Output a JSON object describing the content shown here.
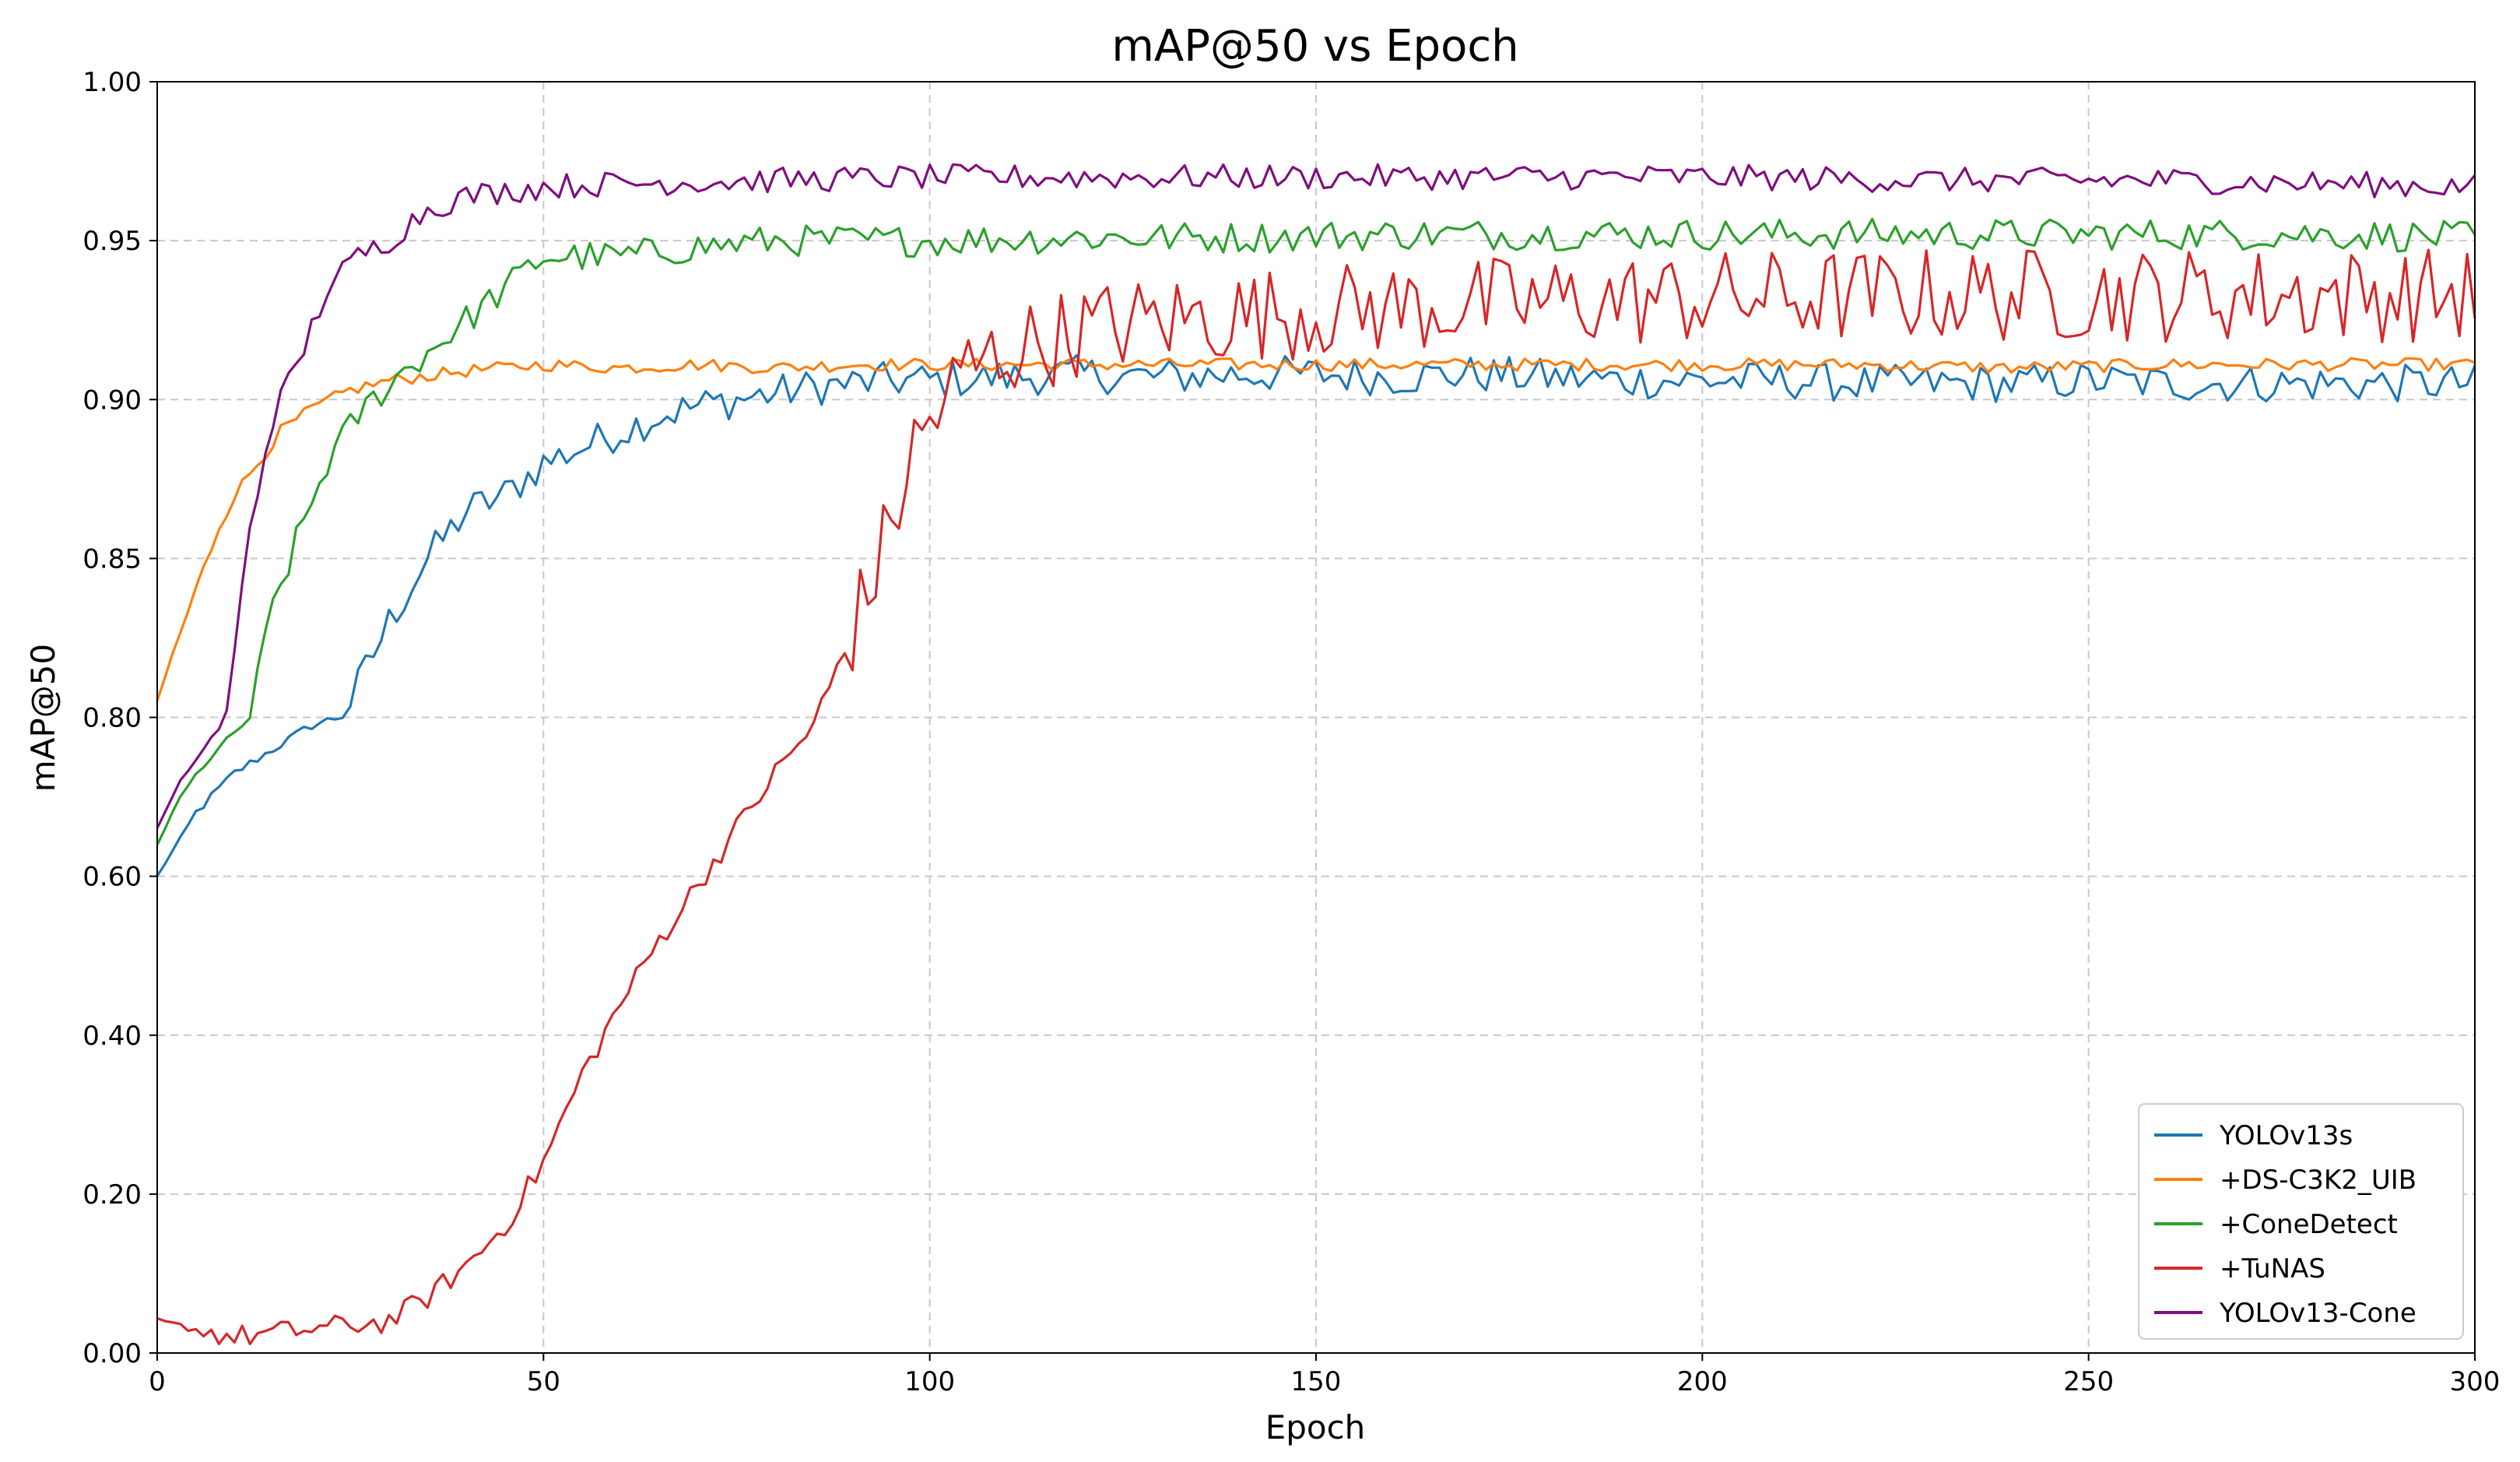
{
  "chart_data": {
    "type": "line",
    "title": "mAP@50 vs Epoch",
    "xlabel": "Epoch",
    "ylabel": "mAP@50",
    "xlim": [
      0,
      300
    ],
    "x_ticks": [
      "0",
      "50",
      "100",
      "150",
      "200",
      "250",
      "300"
    ],
    "y_ticks": [
      "0.00",
      "0.20",
      "0.40",
      "0.60",
      "0.80",
      "0.85",
      "0.90",
      "0.95",
      "1.00"
    ],
    "y_scale_note": "broken axis: 0.00-0.80 compressed, 0.80-1.00 expanded",
    "grid": true,
    "legend_position": "lower-right",
    "series": [
      {
        "name": "YOLOv13s",
        "color": "#1f77b4",
        "points": [
          [
            0,
            0.6
          ],
          [
            5,
            0.68
          ],
          [
            10,
            0.73
          ],
          [
            15,
            0.76
          ],
          [
            20,
            0.79
          ],
          [
            25,
            0.805
          ],
          [
            30,
            0.83
          ],
          [
            35,
            0.85
          ],
          [
            40,
            0.865
          ],
          [
            45,
            0.87
          ],
          [
            50,
            0.88
          ],
          [
            55,
            0.885
          ],
          [
            60,
            0.89
          ],
          [
            65,
            0.895
          ],
          [
            70,
            0.898
          ],
          [
            75,
            0.9
          ],
          [
            80,
            0.902
          ],
          [
            85,
            0.904
          ],
          [
            90,
            0.905
          ],
          [
            95,
            0.906
          ],
          [
            100,
            0.906
          ],
          [
            110,
            0.907
          ],
          [
            120,
            0.908
          ],
          [
            130,
            0.907
          ],
          [
            140,
            0.908
          ],
          [
            150,
            0.908
          ],
          [
            160,
            0.907
          ],
          [
            170,
            0.908
          ],
          [
            180,
            0.907
          ],
          [
            190,
            0.906
          ],
          [
            200,
            0.906
          ],
          [
            210,
            0.906
          ],
          [
            220,
            0.905
          ],
          [
            230,
            0.905
          ],
          [
            240,
            0.905
          ],
          [
            250,
            0.906
          ],
          [
            260,
            0.905
          ],
          [
            270,
            0.905
          ],
          [
            280,
            0.905
          ],
          [
            290,
            0.905
          ],
          [
            300,
            0.905
          ]
        ],
        "noise": 0.006
      },
      {
        "name": "+DS-C3K2_UIB",
        "color": "#ff7f0e",
        "points": [
          [
            0,
            0.805
          ],
          [
            2,
            0.82
          ],
          [
            5,
            0.84
          ],
          [
            8,
            0.86
          ],
          [
            10,
            0.87
          ],
          [
            13,
            0.88
          ],
          [
            16,
            0.89
          ],
          [
            20,
            0.897
          ],
          [
            25,
            0.903
          ],
          [
            30,
            0.906
          ],
          [
            40,
            0.909
          ],
          [
            50,
            0.911
          ],
          [
            60,
            0.91
          ],
          [
            70,
            0.911
          ],
          [
            80,
            0.91
          ],
          [
            90,
            0.911
          ],
          [
            100,
            0.911
          ],
          [
            120,
            0.911
          ],
          [
            140,
            0.911
          ],
          [
            160,
            0.911
          ],
          [
            180,
            0.911
          ],
          [
            200,
            0.911
          ],
          [
            220,
            0.911
          ],
          [
            240,
            0.91
          ],
          [
            260,
            0.911
          ],
          [
            280,
            0.911
          ],
          [
            300,
            0.911
          ]
        ],
        "noise": 0.002
      },
      {
        "name": "+ConeDetect",
        "color": "#2ca02c",
        "points": [
          [
            0,
            0.64
          ],
          [
            3,
            0.7
          ],
          [
            6,
            0.74
          ],
          [
            9,
            0.77
          ],
          [
            12,
            0.8
          ],
          [
            15,
            0.835
          ],
          [
            18,
            0.855
          ],
          [
            22,
            0.88
          ],
          [
            26,
            0.895
          ],
          [
            30,
            0.905
          ],
          [
            35,
            0.915
          ],
          [
            40,
            0.925
          ],
          [
            45,
            0.935
          ],
          [
            50,
            0.945
          ],
          [
            60,
            0.945
          ],
          [
            70,
            0.948
          ],
          [
            80,
            0.95
          ],
          [
            90,
            0.95
          ],
          [
            100,
            0.95
          ],
          [
            120,
            0.951
          ],
          [
            140,
            0.951
          ],
          [
            160,
            0.952
          ],
          [
            180,
            0.952
          ],
          [
            200,
            0.952
          ],
          [
            220,
            0.952
          ],
          [
            240,
            0.952
          ],
          [
            260,
            0.952
          ],
          [
            280,
            0.952
          ],
          [
            300,
            0.951
          ]
        ],
        "noise": 0.005
      },
      {
        "name": "+TuNAS",
        "color": "#d62728",
        "points": [
          [
            0,
            0.04
          ],
          [
            10,
            0.02
          ],
          [
            20,
            0.03
          ],
          [
            30,
            0.04
          ],
          [
            35,
            0.07
          ],
          [
            40,
            0.11
          ],
          [
            45,
            0.16
          ],
          [
            50,
            0.24
          ],
          [
            55,
            0.35
          ],
          [
            60,
            0.44
          ],
          [
            65,
            0.52
          ],
          [
            70,
            0.59
          ],
          [
            75,
            0.66
          ],
          [
            80,
            0.73
          ],
          [
            85,
            0.79
          ],
          [
            88,
            0.815
          ],
          [
            92,
            0.84
          ],
          [
            95,
            0.86
          ],
          [
            98,
            0.885
          ],
          [
            102,
            0.9
          ],
          [
            105,
            0.91
          ],
          [
            110,
            0.915
          ],
          [
            120,
            0.922
          ],
          [
            130,
            0.925
          ],
          [
            150,
            0.928
          ],
          [
            170,
            0.93
          ],
          [
            200,
            0.932
          ],
          [
            230,
            0.933
          ],
          [
            260,
            0.933
          ],
          [
            300,
            0.933
          ]
        ],
        "noise": 0.015
      },
      {
        "name": "YOLOv13-Cone",
        "color": "#7f0f7f",
        "points": [
          [
            0,
            0.66
          ],
          [
            3,
            0.72
          ],
          [
            6,
            0.76
          ],
          [
            9,
            0.8
          ],
          [
            12,
            0.86
          ],
          [
            15,
            0.895
          ],
          [
            18,
            0.91
          ],
          [
            22,
            0.935
          ],
          [
            26,
            0.945
          ],
          [
            30,
            0.95
          ],
          [
            35,
            0.96
          ],
          [
            40,
            0.964
          ],
          [
            50,
            0.967
          ],
          [
            60,
            0.968
          ],
          [
            80,
            0.969
          ],
          [
            100,
            0.97
          ],
          [
            120,
            0.97
          ],
          [
            150,
            0.97
          ],
          [
            180,
            0.97
          ],
          [
            200,
            0.97
          ],
          [
            230,
            0.969
          ],
          [
            260,
            0.969
          ],
          [
            300,
            0.967
          ]
        ],
        "noise": 0.004
      }
    ]
  }
}
